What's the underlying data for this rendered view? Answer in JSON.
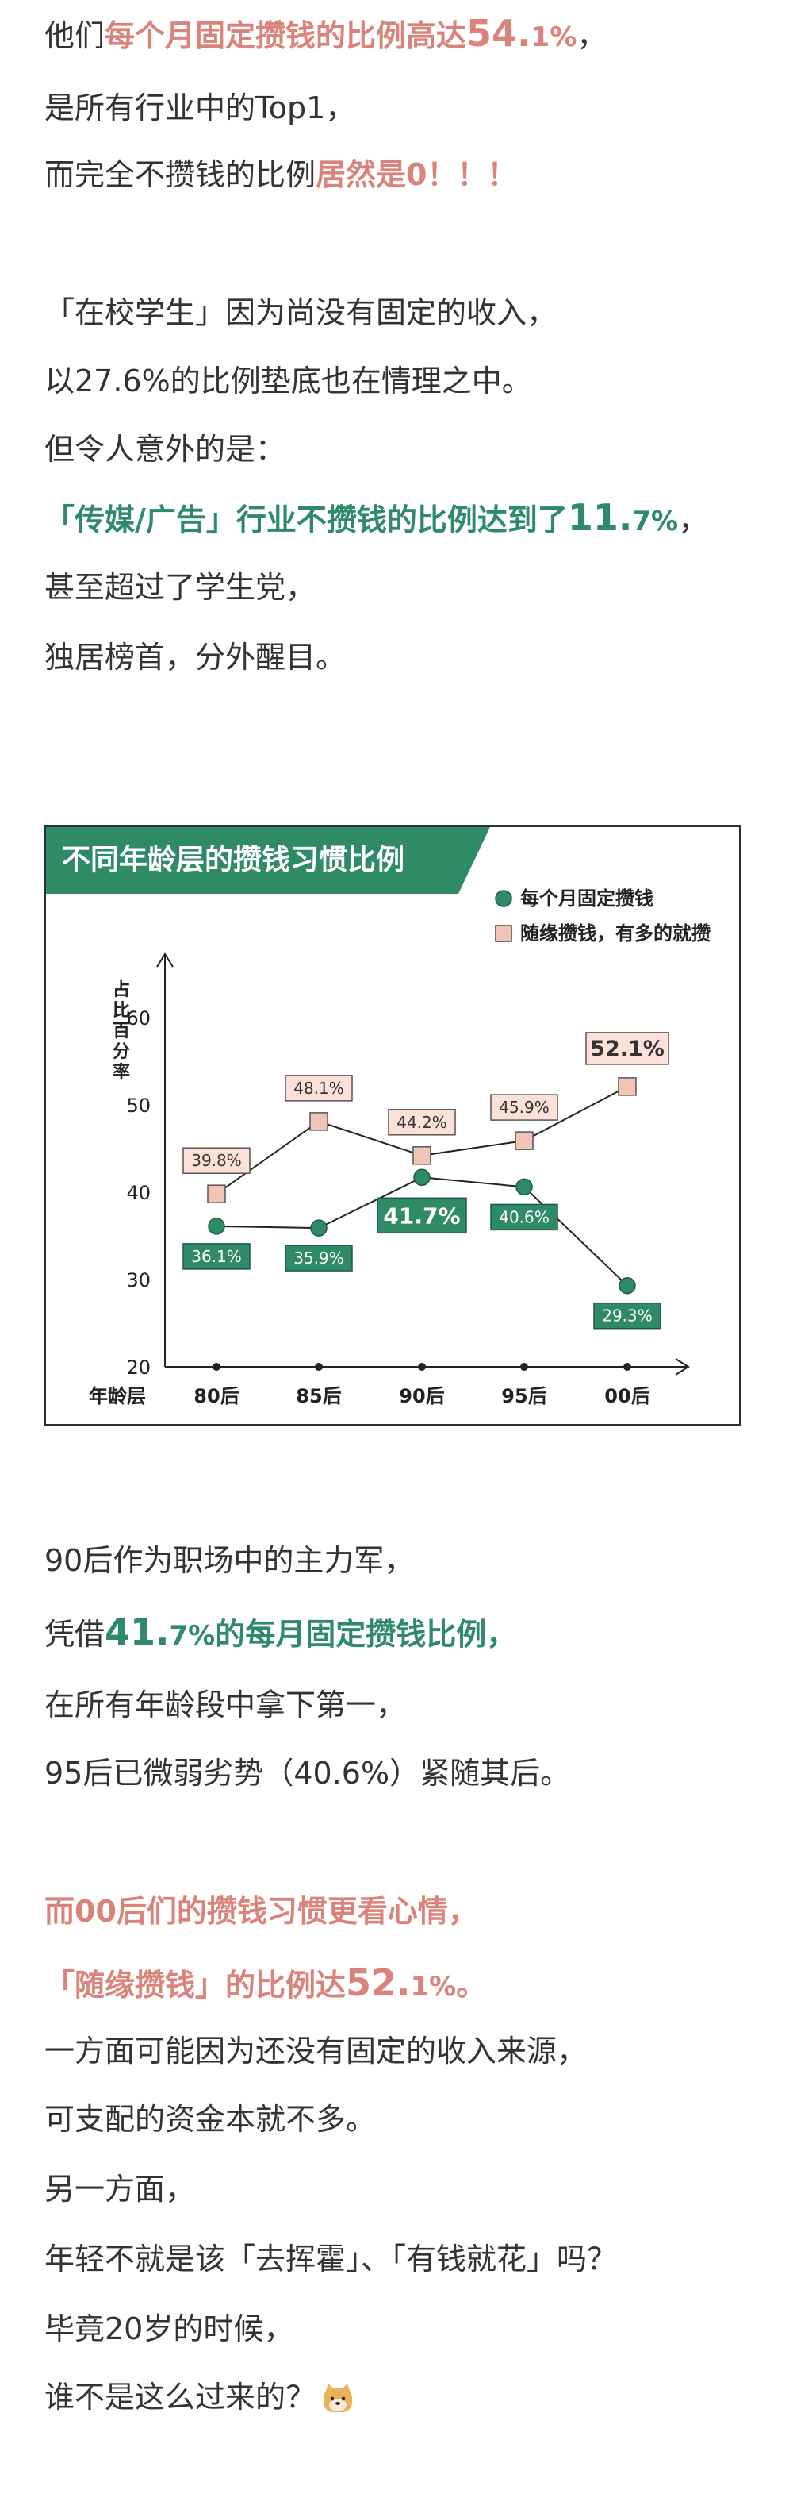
{
  "paragraph1": {
    "l1_a": "他们",
    "l1_b": "每个月固定攒钱的比例高达",
    "l1_num": "54.",
    "l1_dec": "1%",
    "l1_end": "，",
    "l2": "是所有行业中的Top1，",
    "l3_a": "而完全不攒钱的比例",
    "l3_b": "居然是0！！！"
  },
  "paragraph2": {
    "l1": "「在校学生」因为尚没有固定的收入，",
    "l2": "以27.6%的比例垫底也在情理之中。",
    "l3": "但令人意外的是：",
    "l4_a": "「传媒/广告」行业不攒钱的比例达到了",
    "l4_num": "11.",
    "l4_dec": "7%",
    "l4_end": "，",
    "l5": "甚至超过了学生党，",
    "l6": "独居榜首，分外醒目。"
  },
  "chart_data": {
    "type": "line",
    "title": "不同年龄层的攒钱习惯比例",
    "xlabel": "年龄层",
    "ylabel": "占比百分率",
    "categories": [
      "80后",
      "85后",
      "90后",
      "95后",
      "00后"
    ],
    "ylim": [
      20,
      65
    ],
    "yticks": [
      20,
      30,
      40,
      50,
      60
    ],
    "grid": false,
    "legend_position": "top-right",
    "series": [
      {
        "name": "每个月固定攒钱",
        "values": [
          36.1,
          35.9,
          41.7,
          40.6,
          29.3
        ],
        "labels": [
          "36.1%",
          "35.9%",
          "41.7%",
          "40.6%",
          "29.3%"
        ],
        "color": "#2f8a68",
        "marker": "circle"
      },
      {
        "name": "随缘攒钱，有多的就攒",
        "values": [
          39.8,
          48.1,
          44.2,
          45.9,
          52.1
        ],
        "labels": [
          "39.8%",
          "48.1%",
          "44.2%",
          "45.9%",
          "52.1%"
        ],
        "color": "#f2c4b5",
        "marker": "square"
      }
    ]
  },
  "paragraph3": {
    "l1": "90后作为职场中的主力军，",
    "l2_a": "凭借",
    "l2_num": "41.",
    "l2_dec": "7%",
    "l2_b": "的每月固定攒钱比例，",
    "l3": "在所有年龄段中拿下第一，",
    "l4": "95后已微弱劣势（40.6%）紧随其后。"
  },
  "paragraph4": {
    "l1": "而00后们的攒钱习惯更看心情，",
    "l2_a": "「随缘攒钱」的比例达",
    "l2_num": "52.",
    "l2_dec": "1%",
    "l2_end": "。",
    "l3": "一方面可能因为还没有固定的收入来源，",
    "l4": "可支配的资金本就不多。",
    "l5": "另一方面，",
    "l6": "年轻不就是该「去挥霍」、「有钱就花」吗？",
    "l7": "毕竟20岁的时候，",
    "l8": "谁不是这么过来的？"
  },
  "colors": {
    "accent_green": "#2f8a68",
    "accent_pink": "#d9837a",
    "text": "#333333",
    "random_marker_fill": "#f2c4b5"
  }
}
